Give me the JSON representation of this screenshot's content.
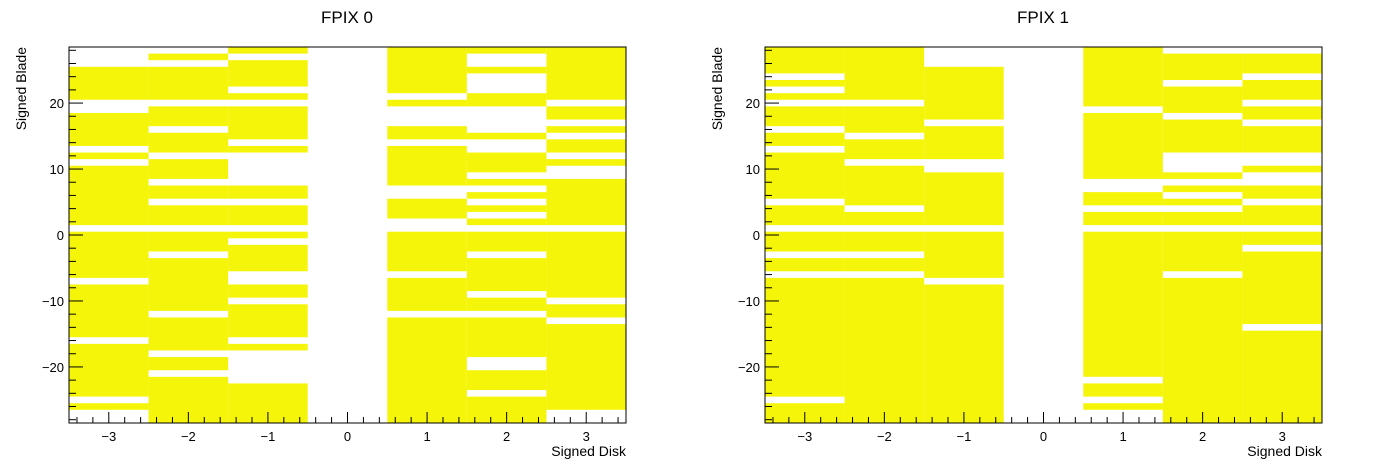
{
  "chart_data": [
    {
      "type": "heatmap",
      "title": "FPIX 0",
      "xlabel": "Signed Disk",
      "ylabel": "Signed Blade",
      "xlim": [
        -3.5,
        3.5
      ],
      "ylim": [
        -28.5,
        28.5
      ],
      "xticks": [
        "−3",
        "−2",
        "−1",
        "0",
        "1",
        "2",
        "3"
      ],
      "yticks": [
        {
          "value": 20,
          "label": "20"
        },
        {
          "value": 10,
          "label": "10"
        },
        {
          "value": 0,
          "label": "0"
        },
        {
          "value": -10,
          "label": "−10"
        },
        {
          "value": -20,
          "label": "−20"
        }
      ],
      "fill_color": "#f5f50a",
      "columns": [
        {
          "disk": -3,
          "filled_blade_ranges": [
            [
              -26,
              -26
            ],
            [
              -24,
              -17
            ],
            [
              -15,
              -8
            ],
            [
              -6,
              0
            ],
            [
              2,
              10
            ],
            [
              12,
              12
            ],
            [
              14,
              18
            ],
            [
              21,
              25
            ]
          ]
        },
        {
          "disk": -2,
          "filled_blade_ranges": [
            [
              -28,
              -22
            ],
            [
              -20,
              -19
            ],
            [
              -17,
              -13
            ],
            [
              -11,
              -4
            ],
            [
              -2,
              0
            ],
            [
              2,
              4
            ],
            [
              6,
              7
            ],
            [
              9,
              11
            ],
            [
              13,
              15
            ],
            [
              17,
              19
            ],
            [
              21,
              25
            ],
            [
              27,
              27
            ]
          ]
        },
        {
          "disk": -1,
          "filled_blade_ranges": [
            [
              -28,
              -23
            ],
            [
              -17,
              -17
            ],
            [
              -15,
              -11
            ],
            [
              -9,
              -8
            ],
            [
              -5,
              -2
            ],
            [
              0,
              0
            ],
            [
              2,
              4
            ],
            [
              6,
              7
            ],
            [
              13,
              13
            ],
            [
              15,
              19
            ],
            [
              21,
              21
            ],
            [
              23,
              26
            ],
            [
              28,
              28
            ]
          ]
        },
        {
          "disk": 1,
          "filled_blade_ranges": [
            [
              -28,
              -13
            ],
            [
              -11,
              -7
            ],
            [
              -5,
              0
            ],
            [
              3,
              5
            ],
            [
              8,
              13
            ],
            [
              15,
              16
            ],
            [
              20,
              20
            ],
            [
              22,
              28
            ]
          ]
        },
        {
          "disk": 2,
          "filled_blade_ranges": [
            [
              -28,
              -25
            ],
            [
              -23,
              -21
            ],
            [
              -18,
              -13
            ],
            [
              -11,
              -10
            ],
            [
              -8,
              -4
            ],
            [
              -2,
              0
            ],
            [
              2,
              2
            ],
            [
              4,
              4
            ],
            [
              6,
              6
            ],
            [
              8,
              8
            ],
            [
              10,
              12
            ],
            [
              15,
              15
            ],
            [
              20,
              21
            ],
            [
              25,
              25
            ],
            [
              28,
              28
            ]
          ]
        },
        {
          "disk": 3,
          "filled_blade_ranges": [
            [
              -26,
              -14
            ],
            [
              -12,
              -11
            ],
            [
              -9,
              0
            ],
            [
              2,
              8
            ],
            [
              11,
              11
            ],
            [
              13,
              14
            ],
            [
              16,
              16
            ],
            [
              18,
              19
            ],
            [
              21,
              28
            ]
          ]
        }
      ]
    },
    {
      "type": "heatmap",
      "title": "FPIX 1",
      "xlabel": "Signed Disk",
      "ylabel": "Signed Blade",
      "xlim": [
        -3.5,
        3.5
      ],
      "ylim": [
        -28.5,
        28.5
      ],
      "xticks": [
        "−3",
        "−2",
        "−1",
        "0",
        "1",
        "2",
        "3"
      ],
      "yticks": [
        {
          "value": 20,
          "label": "20"
        },
        {
          "value": 10,
          "label": "10"
        },
        {
          "value": 0,
          "label": "0"
        },
        {
          "value": -10,
          "label": "−10"
        },
        {
          "value": -20,
          "label": "−20"
        }
      ],
      "fill_color": "#f5f50a",
      "columns": [
        {
          "disk": -3,
          "filled_blade_ranges": [
            [
              -28,
              -26
            ],
            [
              -24,
              -7
            ],
            [
              -5,
              -4
            ],
            [
              -2,
              0
            ],
            [
              2,
              4
            ],
            [
              6,
              12
            ],
            [
              14,
              15
            ],
            [
              17,
              19
            ],
            [
              21,
              21
            ],
            [
              23,
              23
            ],
            [
              25,
              28
            ]
          ]
        },
        {
          "disk": -2,
          "filled_blade_ranges": [
            [
              -28,
              -7
            ],
            [
              -5,
              -4
            ],
            [
              -2,
              0
            ],
            [
              2,
              3
            ],
            [
              5,
              10
            ],
            [
              12,
              14
            ],
            [
              16,
              19
            ],
            [
              21,
              28
            ]
          ]
        },
        {
          "disk": -1,
          "filled_blade_ranges": [
            [
              -28,
              -8
            ],
            [
              -6,
              0
            ],
            [
              2,
              9
            ],
            [
              12,
              16
            ],
            [
              18,
              25
            ]
          ]
        },
        {
          "disk": 1,
          "filled_blade_ranges": [
            [
              -26,
              -26
            ],
            [
              -24,
              -23
            ],
            [
              -21,
              0
            ],
            [
              2,
              3
            ],
            [
              5,
              6
            ],
            [
              9,
              18
            ],
            [
              20,
              28
            ]
          ]
        },
        {
          "disk": 2,
          "filled_blade_ranges": [
            [
              -28,
              -7
            ],
            [
              -5,
              0
            ],
            [
              2,
              3
            ],
            [
              5,
              5
            ],
            [
              7,
              7
            ],
            [
              9,
              9
            ],
            [
              13,
              17
            ],
            [
              19,
              22
            ],
            [
              24,
              27
            ]
          ]
        },
        {
          "disk": 3,
          "filled_blade_ranges": [
            [
              -28,
              -15
            ],
            [
              -13,
              -3
            ],
            [
              -1,
              0
            ],
            [
              2,
              4
            ],
            [
              6,
              7
            ],
            [
              10,
              10
            ],
            [
              13,
              16
            ],
            [
              18,
              19
            ],
            [
              21,
              23
            ],
            [
              25,
              27
            ]
          ]
        }
      ]
    }
  ]
}
